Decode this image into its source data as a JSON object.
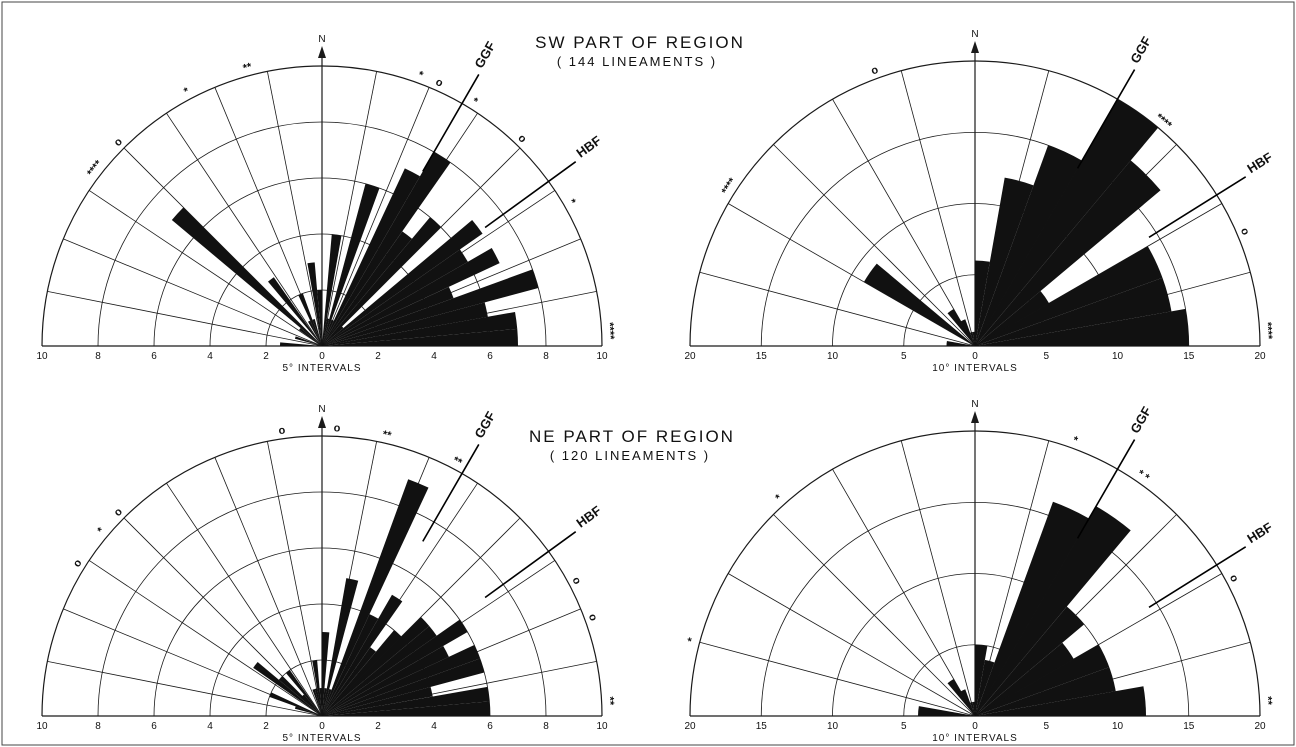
{
  "titles": {
    "sw_title": "SW PART OF REGION",
    "sw_subtitle": "( 144 LINEAMENTS )",
    "ne_title": "NE PART OF REGION",
    "ne_subtitle": "( 120 LINEAMENTS )"
  },
  "colors": {
    "bar": "#111111",
    "grid": "#1a1a1a",
    "background": "#ffffff"
  },
  "chart_data": [
    {
      "type": "rose",
      "xlabel": "5° INTERVALS",
      "north_label": "N",
      "radial_max": 10,
      "tick_labels": [
        "10",
        "8",
        "6",
        "4",
        "2",
        "0",
        "2",
        "4",
        "6",
        "8",
        "10"
      ],
      "sector_width_deg": 5,
      "bins_deg_from_north": [
        -87.5,
        -82.5,
        -77.5,
        -72.5,
        -67.5,
        -62.5,
        -57.5,
        -52.5,
        -47.5,
        -42.5,
        -37.5,
        -32.5,
        -27.5,
        -22.5,
        -17.5,
        -12.5,
        -7.5,
        -2.5,
        2.5,
        7.5,
        12.5,
        17.5,
        22.5,
        27.5,
        32.5,
        37.5,
        42.5,
        47.5,
        52.5,
        57.5,
        62.5,
        67.5,
        72.5,
        77.5,
        82.5,
        87.5
      ],
      "values": [
        1.5,
        0,
        0,
        1,
        0,
        0,
        0,
        1,
        7,
        0,
        3,
        0,
        1,
        2,
        1,
        0,
        3,
        2,
        0,
        4,
        1,
        6,
        1,
        7,
        8,
        5,
        6,
        1,
        7,
        6,
        7,
        5,
        8,
        6,
        7,
        7
      ],
      "faults": [
        {
          "label": "GGF",
          "angle_deg": 30
        },
        {
          "label": "HBF",
          "angle_deg": 54
        }
      ],
      "markers": [
        {
          "angle_deg": -52,
          "text": "****"
        },
        {
          "angle_deg": -45,
          "text": "o"
        },
        {
          "angle_deg": -28,
          "text": "*"
        },
        {
          "angle_deg": -15,
          "text": "**"
        },
        {
          "angle_deg": 20,
          "text": "*"
        },
        {
          "angle_deg": 24,
          "text": "o"
        },
        {
          "angle_deg": 32,
          "text": "*"
        },
        {
          "angle_deg": 44,
          "text": "o"
        },
        {
          "angle_deg": 60,
          "text": "*"
        },
        {
          "angle_deg": 87,
          "text": "****"
        }
      ]
    },
    {
      "type": "rose",
      "xlabel": "10° INTERVALS",
      "north_label": "N",
      "radial_max": 20,
      "tick_labels": [
        "20",
        "15",
        "10",
        "5",
        "0",
        "5",
        "10",
        "15",
        "20"
      ],
      "sector_width_deg": 10,
      "bins_deg_from_north": [
        -85,
        -75,
        -65,
        -55,
        -45,
        -35,
        -25,
        -15,
        -5,
        5,
        15,
        25,
        35,
        45,
        55,
        65,
        75,
        85
      ],
      "values": [
        2,
        0,
        0,
        9,
        0,
        3,
        2,
        1,
        1,
        6,
        12,
        15,
        20,
        17,
        6,
        14,
        14,
        15
      ],
      "faults": [
        {
          "label": "GGF",
          "angle_deg": 30
        },
        {
          "label": "HBF",
          "angle_deg": 58
        }
      ],
      "markers": [
        {
          "angle_deg": -57,
          "text": "****"
        },
        {
          "angle_deg": -20,
          "text": "o"
        },
        {
          "angle_deg": 40,
          "text": "****"
        },
        {
          "angle_deg": 67,
          "text": "o"
        },
        {
          "angle_deg": 87,
          "text": "****"
        }
      ]
    },
    {
      "type": "rose",
      "xlabel": "5° INTERVALS",
      "north_label": "N",
      "radial_max": 10,
      "tick_labels": [
        "10",
        "8",
        "6",
        "4",
        "2",
        "0",
        "2",
        "4",
        "6",
        "8",
        "10"
      ],
      "sector_width_deg": 5,
      "bins_deg_from_north": [
        -87.5,
        -82.5,
        -77.5,
        -72.5,
        -67.5,
        -62.5,
        -57.5,
        -52.5,
        -47.5,
        -42.5,
        -37.5,
        -32.5,
        -27.5,
        -22.5,
        -17.5,
        -12.5,
        -7.5,
        -2.5,
        2.5,
        7.5,
        12.5,
        17.5,
        22.5,
        27.5,
        32.5,
        37.5,
        42.5,
        47.5,
        52.5,
        57.5,
        62.5,
        67.5,
        72.5,
        77.5,
        82.5,
        87.5
      ],
      "values": [
        0,
        0,
        0,
        1,
        2,
        0,
        0,
        3,
        2,
        1,
        2,
        0,
        0,
        0,
        1,
        1,
        2,
        1,
        3,
        1,
        5,
        1,
        9,
        4,
        5,
        3,
        4,
        5,
        5,
        6,
        5,
        6,
        6,
        4,
        6,
        6
      ],
      "faults": [
        {
          "label": "GGF",
          "angle_deg": 30
        },
        {
          "label": "HBF",
          "angle_deg": 54
        }
      ],
      "markers": [
        {
          "angle_deg": -58,
          "text": "o"
        },
        {
          "angle_deg": -50,
          "text": "*"
        },
        {
          "angle_deg": -45,
          "text": "o"
        },
        {
          "angle_deg": -8,
          "text": "o"
        },
        {
          "angle_deg": 3,
          "text": "o"
        },
        {
          "angle_deg": 13,
          "text": "**"
        },
        {
          "angle_deg": 28,
          "text": "**"
        },
        {
          "angle_deg": 62,
          "text": "o"
        },
        {
          "angle_deg": 70,
          "text": "o"
        },
        {
          "angle_deg": 87,
          "text": "**"
        }
      ]
    },
    {
      "type": "rose",
      "xlabel": "10° INTERVALS",
      "north_label": "N",
      "radial_max": 20,
      "tick_labels": [
        "20",
        "15",
        "10",
        "5",
        "0",
        "5",
        "10",
        "15",
        "20"
      ],
      "sector_width_deg": 10,
      "bins_deg_from_north": [
        -85,
        -75,
        -65,
        -55,
        -45,
        -35,
        -25,
        -15,
        -5,
        5,
        15,
        25,
        35,
        45,
        55,
        65,
        75,
        85
      ],
      "values": [
        4,
        0,
        0,
        0,
        0,
        3,
        2,
        1,
        1,
        5,
        4,
        16,
        17,
        10,
        8,
        10,
        10,
        12
      ],
      "faults": [
        {
          "label": "GGF",
          "angle_deg": 30
        },
        {
          "label": "HBF",
          "angle_deg": 58
        }
      ],
      "markers": [
        {
          "angle_deg": -75,
          "text": "*"
        },
        {
          "angle_deg": -42,
          "text": "*"
        },
        {
          "angle_deg": 20,
          "text": "*"
        },
        {
          "angle_deg": 35,
          "text": "* *"
        },
        {
          "angle_deg": 62,
          "text": "o"
        },
        {
          "angle_deg": 87,
          "text": "**"
        }
      ]
    }
  ]
}
